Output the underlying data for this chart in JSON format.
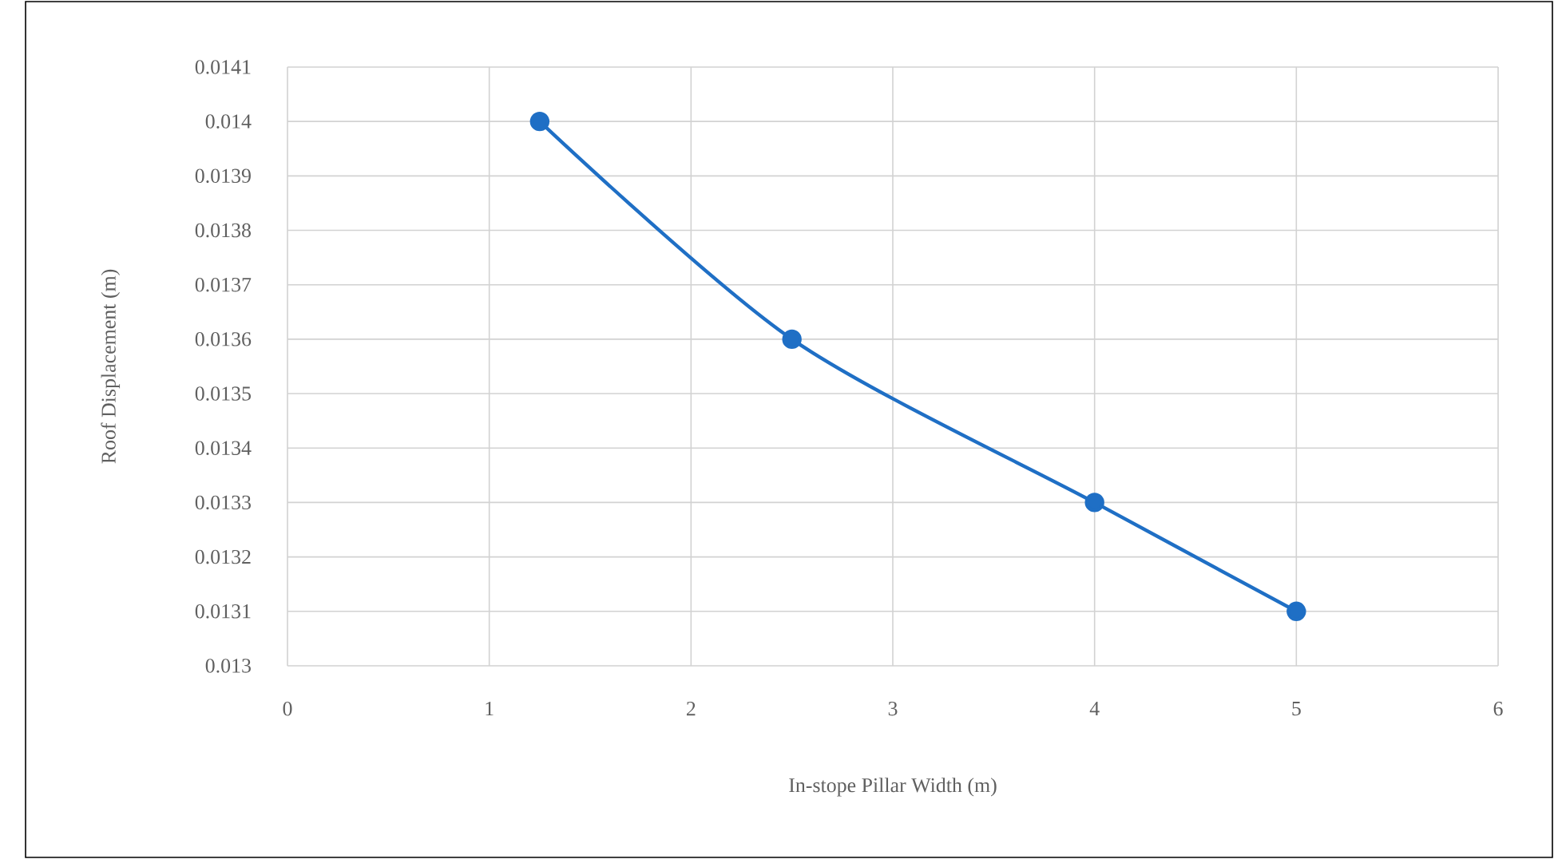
{
  "chart_data": {
    "type": "line",
    "xlabel": "In-stope Pillar Width (m)",
    "ylabel": "Roof Displacement (m)",
    "x": [
      1.25,
      2.5,
      4,
      5
    ],
    "series": [
      {
        "color": "#1f6fc5",
        "values": [
          0.014,
          0.0136,
          0.0133,
          0.0131
        ]
      }
    ],
    "xlim": [
      0,
      6
    ],
    "xticks": [
      0,
      1,
      2,
      3,
      4,
      5,
      6
    ],
    "ylim": [
      0.013,
      0.0141
    ],
    "yticks": [
      0.013,
      0.0131,
      0.0132,
      0.0133,
      0.0134,
      0.0135,
      0.0136,
      0.0137,
      0.0138,
      0.0139,
      0.014,
      0.0141
    ],
    "grid": true,
    "marker": "circle",
    "line_style": "solid"
  }
}
